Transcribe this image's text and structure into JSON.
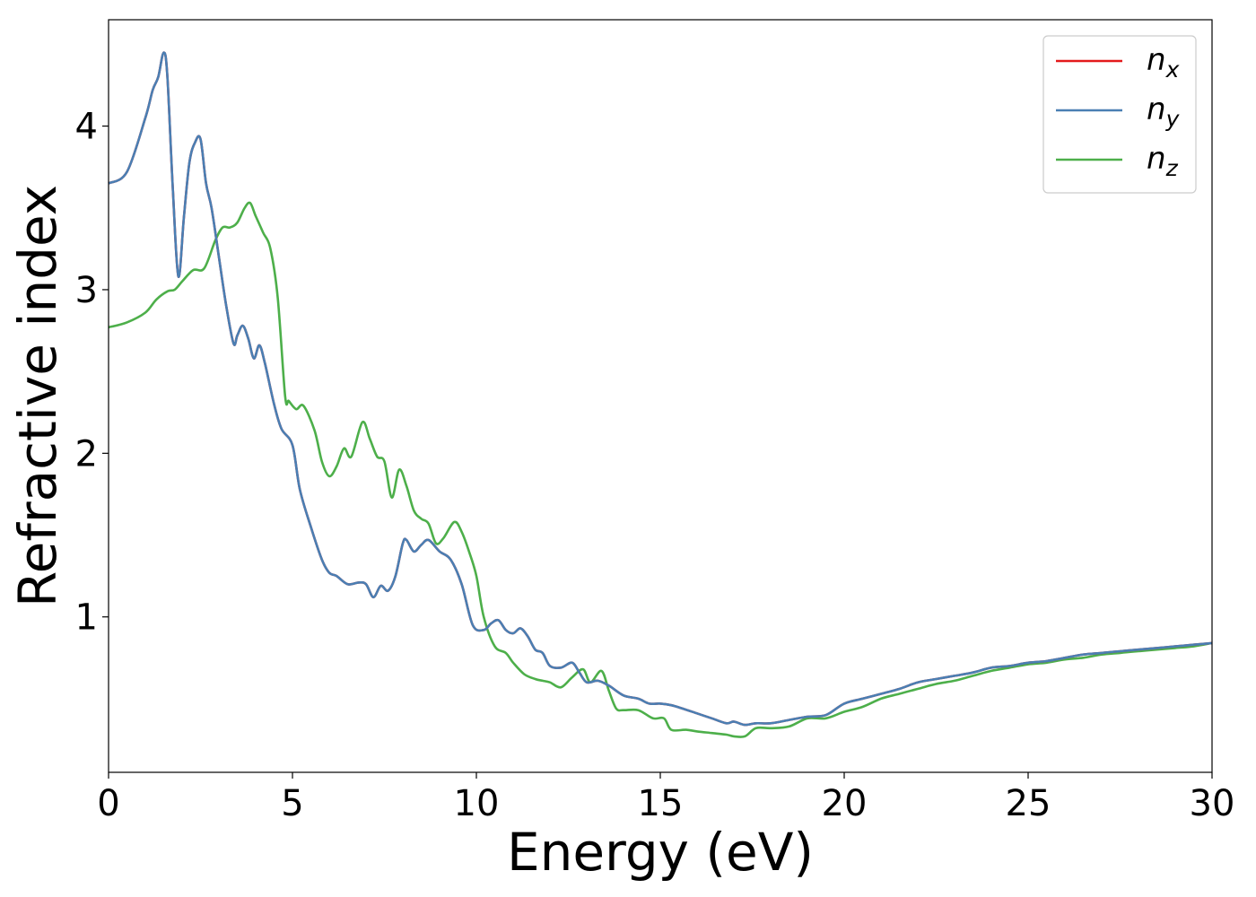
{
  "chart_data": {
    "type": "line",
    "xlabel": "Energy (eV)",
    "ylabel": "Refractive index",
    "xlim": [
      0,
      30
    ],
    "ylim": [
      0.05,
      4.65
    ],
    "xticks": [
      0,
      5,
      10,
      15,
      20,
      25,
      30
    ],
    "yticks": [
      1,
      2,
      3,
      4
    ],
    "grid": false,
    "legend": {
      "position": "top-right",
      "entries": [
        {
          "base": "n",
          "sub": "x"
        },
        {
          "base": "n",
          "sub": "y"
        },
        {
          "base": "n",
          "sub": "z"
        }
      ]
    },
    "series": [
      {
        "name": "nx",
        "color": "#e41a1c",
        "x": [
          0,
          0.5,
          1.0,
          1.2,
          1.35,
          1.5,
          1.6,
          1.75,
          1.9,
          2.05,
          2.2,
          2.35,
          2.5,
          2.65,
          2.8,
          3.0,
          3.2,
          3.4,
          3.5,
          3.65,
          3.8,
          3.95,
          4.1,
          4.25,
          4.5,
          4.7,
          5.0,
          5.2,
          5.5,
          5.8,
          6.0,
          6.2,
          6.5,
          6.8,
          7.0,
          7.2,
          7.4,
          7.6,
          7.8,
          8.0,
          8.1,
          8.3,
          8.5,
          8.7,
          9.0,
          9.3,
          9.6,
          9.9,
          10.2,
          10.4,
          10.6,
          10.8,
          11.0,
          11.2,
          11.4,
          11.6,
          11.8,
          12.0,
          12.3,
          12.6,
          12.8,
          13.0,
          13.3,
          13.6,
          14.0,
          14.4,
          14.7,
          15.0,
          15.3,
          15.6,
          16.0,
          16.4,
          16.8,
          17.0,
          17.3,
          17.6,
          18.0,
          18.5,
          19.0,
          19.5,
          20.0,
          20.5,
          21.0,
          21.5,
          22.0,
          22.5,
          23.0,
          23.5,
          24.0,
          24.5,
          25.0,
          25.5,
          26.0,
          26.5,
          27.0,
          27.5,
          28.0,
          28.5,
          29.0,
          29.5,
          30.0
        ],
        "y": [
          3.65,
          3.72,
          4.05,
          4.22,
          4.3,
          4.45,
          4.3,
          3.6,
          3.08,
          3.45,
          3.78,
          3.9,
          3.92,
          3.65,
          3.5,
          3.2,
          2.9,
          2.67,
          2.72,
          2.78,
          2.7,
          2.58,
          2.66,
          2.55,
          2.3,
          2.15,
          2.05,
          1.78,
          1.55,
          1.35,
          1.27,
          1.25,
          1.2,
          1.21,
          1.2,
          1.12,
          1.19,
          1.16,
          1.25,
          1.45,
          1.47,
          1.4,
          1.44,
          1.47,
          1.4,
          1.35,
          1.2,
          0.95,
          0.92,
          0.96,
          0.98,
          0.92,
          0.9,
          0.93,
          0.88,
          0.8,
          0.78,
          0.7,
          0.69,
          0.72,
          0.66,
          0.6,
          0.61,
          0.58,
          0.52,
          0.5,
          0.47,
          0.47,
          0.46,
          0.44,
          0.41,
          0.38,
          0.35,
          0.36,
          0.34,
          0.35,
          0.35,
          0.37,
          0.39,
          0.4,
          0.47,
          0.5,
          0.53,
          0.56,
          0.6,
          0.62,
          0.64,
          0.66,
          0.69,
          0.7,
          0.72,
          0.73,
          0.75,
          0.77,
          0.78,
          0.79,
          0.8,
          0.81,
          0.82,
          0.83,
          0.84
        ]
      },
      {
        "name": "ny",
        "color": "#4a7fb3",
        "x": [
          0,
          0.5,
          1.0,
          1.2,
          1.35,
          1.5,
          1.6,
          1.75,
          1.9,
          2.05,
          2.2,
          2.35,
          2.5,
          2.65,
          2.8,
          3.0,
          3.2,
          3.4,
          3.5,
          3.65,
          3.8,
          3.95,
          4.1,
          4.25,
          4.5,
          4.7,
          5.0,
          5.2,
          5.5,
          5.8,
          6.0,
          6.2,
          6.5,
          6.8,
          7.0,
          7.2,
          7.4,
          7.6,
          7.8,
          8.0,
          8.1,
          8.3,
          8.5,
          8.7,
          9.0,
          9.3,
          9.6,
          9.9,
          10.2,
          10.4,
          10.6,
          10.8,
          11.0,
          11.2,
          11.4,
          11.6,
          11.8,
          12.0,
          12.3,
          12.6,
          12.8,
          13.0,
          13.3,
          13.6,
          14.0,
          14.4,
          14.7,
          15.0,
          15.3,
          15.6,
          16.0,
          16.4,
          16.8,
          17.0,
          17.3,
          17.6,
          18.0,
          18.5,
          19.0,
          19.5,
          20.0,
          20.5,
          21.0,
          21.5,
          22.0,
          22.5,
          23.0,
          23.5,
          24.0,
          24.5,
          25.0,
          25.5,
          26.0,
          26.5,
          27.0,
          27.5,
          28.0,
          28.5,
          29.0,
          29.5,
          30.0
        ],
        "y": [
          3.65,
          3.72,
          4.05,
          4.22,
          4.3,
          4.45,
          4.3,
          3.6,
          3.08,
          3.45,
          3.78,
          3.9,
          3.92,
          3.65,
          3.5,
          3.2,
          2.9,
          2.67,
          2.72,
          2.78,
          2.7,
          2.58,
          2.66,
          2.55,
          2.3,
          2.15,
          2.05,
          1.78,
          1.55,
          1.35,
          1.27,
          1.25,
          1.2,
          1.21,
          1.2,
          1.12,
          1.19,
          1.16,
          1.25,
          1.45,
          1.47,
          1.4,
          1.44,
          1.47,
          1.4,
          1.35,
          1.2,
          0.95,
          0.92,
          0.96,
          0.98,
          0.92,
          0.9,
          0.93,
          0.88,
          0.8,
          0.78,
          0.7,
          0.69,
          0.72,
          0.66,
          0.6,
          0.61,
          0.58,
          0.52,
          0.5,
          0.47,
          0.47,
          0.46,
          0.44,
          0.41,
          0.38,
          0.35,
          0.36,
          0.34,
          0.35,
          0.35,
          0.37,
          0.39,
          0.4,
          0.47,
          0.5,
          0.53,
          0.56,
          0.6,
          0.62,
          0.64,
          0.66,
          0.69,
          0.7,
          0.72,
          0.73,
          0.75,
          0.77,
          0.78,
          0.79,
          0.8,
          0.81,
          0.82,
          0.83,
          0.84
        ]
      },
      {
        "name": "nz",
        "color": "#4daf4a",
        "x": [
          0,
          0.5,
          1.0,
          1.3,
          1.6,
          1.8,
          2.0,
          2.3,
          2.6,
          2.9,
          3.1,
          3.3,
          3.5,
          3.7,
          3.85,
          4.0,
          4.2,
          4.4,
          4.6,
          4.8,
          4.9,
          5.1,
          5.3,
          5.6,
          5.8,
          6.0,
          6.2,
          6.4,
          6.6,
          6.9,
          7.1,
          7.3,
          7.5,
          7.7,
          7.9,
          8.1,
          8.3,
          8.5,
          8.7,
          8.9,
          9.1,
          9.4,
          9.6,
          9.8,
          10.0,
          10.2,
          10.5,
          10.8,
          11.0,
          11.3,
          11.6,
          11.8,
          12.0,
          12.3,
          12.6,
          12.9,
          13.1,
          13.4,
          13.6,
          13.8,
          14.0,
          14.4,
          14.8,
          15.1,
          15.3,
          15.7,
          16.0,
          16.4,
          16.8,
          17.0,
          17.3,
          17.6,
          18.0,
          18.5,
          19.0,
          19.5,
          20.0,
          20.5,
          21.0,
          21.5,
          22.0,
          22.5,
          23.0,
          23.5,
          24.0,
          24.5,
          25.0,
          25.5,
          26.0,
          26.5,
          27.0,
          27.5,
          28.0,
          28.5,
          29.0,
          29.5,
          30.0
        ],
        "y": [
          2.77,
          2.8,
          2.86,
          2.94,
          2.99,
          3.0,
          3.05,
          3.12,
          3.13,
          3.3,
          3.38,
          3.38,
          3.41,
          3.5,
          3.53,
          3.45,
          3.35,
          3.25,
          2.95,
          2.35,
          2.32,
          2.27,
          2.29,
          2.14,
          1.95,
          1.86,
          1.92,
          2.03,
          1.98,
          2.19,
          2.09,
          1.98,
          1.95,
          1.73,
          1.9,
          1.8,
          1.65,
          1.6,
          1.57,
          1.45,
          1.48,
          1.58,
          1.52,
          1.4,
          1.25,
          1.0,
          0.82,
          0.78,
          0.72,
          0.65,
          0.62,
          0.61,
          0.6,
          0.57,
          0.63,
          0.68,
          0.6,
          0.67,
          0.55,
          0.44,
          0.43,
          0.43,
          0.38,
          0.38,
          0.31,
          0.31,
          0.3,
          0.29,
          0.28,
          0.27,
          0.27,
          0.32,
          0.32,
          0.33,
          0.38,
          0.38,
          0.42,
          0.45,
          0.5,
          0.53,
          0.56,
          0.59,
          0.61,
          0.64,
          0.67,
          0.69,
          0.71,
          0.72,
          0.74,
          0.75,
          0.77,
          0.78,
          0.79,
          0.8,
          0.81,
          0.82,
          0.84
        ]
      }
    ]
  }
}
